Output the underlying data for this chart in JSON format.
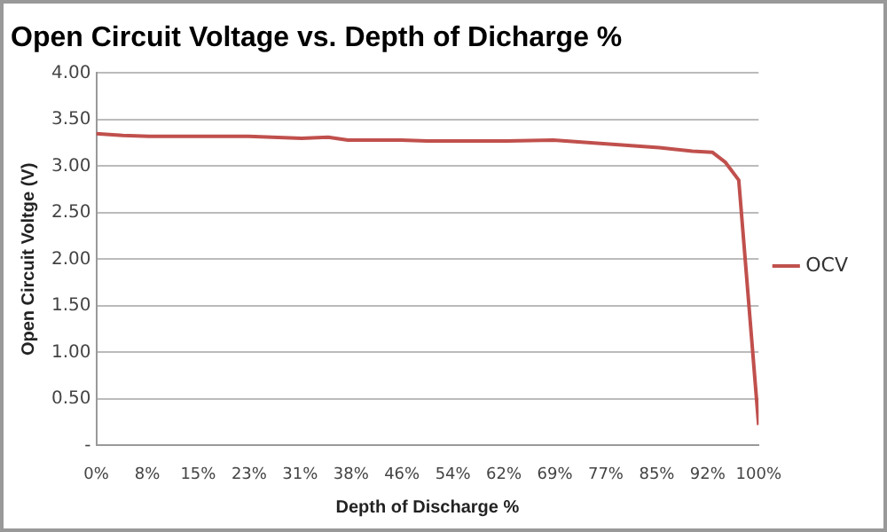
{
  "chart_data": {
    "type": "line",
    "title": "Open Circuit Voltage vs. Depth of Dicharge %",
    "xlabel": "Depth of Discharge %",
    "ylabel": "Open Circuit Voltge (V)",
    "x": [
      0,
      4,
      8,
      15,
      23,
      31,
      35,
      38,
      46,
      50,
      54,
      62,
      69,
      77,
      85,
      90,
      93,
      95,
      97,
      100
    ],
    "series": [
      {
        "name": "OCV",
        "color": "#c0504d",
        "values": [
          3.35,
          3.33,
          3.32,
          3.32,
          3.32,
          3.3,
          3.31,
          3.28,
          3.28,
          3.27,
          3.27,
          3.27,
          3.28,
          3.24,
          3.2,
          3.16,
          3.15,
          3.04,
          2.85,
          0.22
        ]
      }
    ],
    "xlim": [
      0,
      100
    ],
    "xticks": [
      {
        "value": 0,
        "label": "0%"
      },
      {
        "value": 7.69,
        "label": "8%"
      },
      {
        "value": 15.38,
        "label": "15%"
      },
      {
        "value": 23.08,
        "label": "23%"
      },
      {
        "value": 30.77,
        "label": "31%"
      },
      {
        "value": 38.46,
        "label": "38%"
      },
      {
        "value": 46.15,
        "label": "46%"
      },
      {
        "value": 53.85,
        "label": "54%"
      },
      {
        "value": 61.54,
        "label": "62%"
      },
      {
        "value": 69.23,
        "label": "69%"
      },
      {
        "value": 76.92,
        "label": "77%"
      },
      {
        "value": 84.62,
        "label": "85%"
      },
      {
        "value": 92.31,
        "label": "92%"
      },
      {
        "value": 100,
        "label": "100%"
      }
    ],
    "ylim": [
      0,
      4
    ],
    "yticks": [
      {
        "value": 0,
        "label": "-"
      },
      {
        "value": 0.5,
        "label": "0.50"
      },
      {
        "value": 1,
        "label": "1.00"
      },
      {
        "value": 1.5,
        "label": "1.50"
      },
      {
        "value": 2,
        "label": "2.00"
      },
      {
        "value": 2.5,
        "label": "2.50"
      },
      {
        "value": 3,
        "label": "3.00"
      },
      {
        "value": 3.5,
        "label": "3.50"
      },
      {
        "value": 4,
        "label": "4.00"
      }
    ],
    "grid": "y",
    "legend": "right",
    "marker": "none",
    "line_style": "solid"
  }
}
